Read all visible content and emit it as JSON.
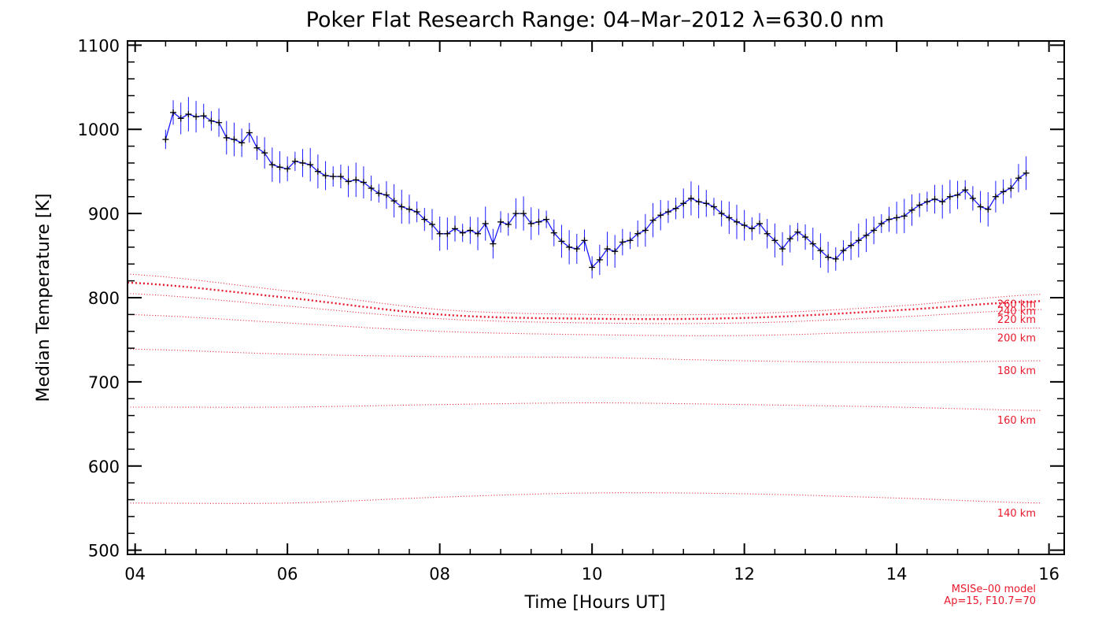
{
  "chart_data": {
    "type": "line",
    "title": "Poker Flat Research Range: 04–Mar–2012 λ=630.0 nm",
    "xlabel": "Time [Hours UT]",
    "ylabel": "Median Temperature [K]",
    "xlim": [
      3.9,
      16.2
    ],
    "ylim": [
      495,
      1105
    ],
    "xticks": [
      4,
      6,
      8,
      10,
      12,
      14,
      16
    ],
    "xtick_labels": [
      "04",
      "06",
      "08",
      "10",
      "12",
      "14",
      "16"
    ],
    "yticks": [
      500,
      600,
      700,
      800,
      900,
      1000,
      1100
    ],
    "ytick_labels": [
      "500",
      "600",
      "700",
      "800",
      "900",
      "1000",
      "1100"
    ],
    "grid": false,
    "measured": {
      "color": "#1a1aff",
      "marker_color": "#000000",
      "error": 17,
      "points": [
        [
          4.4,
          988
        ],
        [
          4.5,
          1020
        ],
        [
          4.6,
          1013
        ],
        [
          4.7,
          1018
        ],
        [
          4.8,
          1015
        ],
        [
          4.9,
          1016
        ],
        [
          5.0,
          1010
        ],
        [
          5.1,
          1008
        ],
        [
          5.2,
          990
        ],
        [
          5.3,
          988
        ],
        [
          5.4,
          984
        ],
        [
          5.5,
          996
        ],
        [
          5.6,
          978
        ],
        [
          5.7,
          972
        ],
        [
          5.8,
          958
        ],
        [
          5.9,
          955
        ],
        [
          6.0,
          953
        ],
        [
          6.1,
          962
        ],
        [
          6.2,
          960
        ],
        [
          6.3,
          958
        ],
        [
          6.4,
          950
        ],
        [
          6.5,
          945
        ],
        [
          6.6,
          944
        ],
        [
          6.7,
          944
        ],
        [
          6.8,
          938
        ],
        [
          6.9,
          940
        ],
        [
          7.0,
          937
        ],
        [
          7.1,
          930
        ],
        [
          7.2,
          924
        ],
        [
          7.3,
          922
        ],
        [
          7.4,
          915
        ],
        [
          7.5,
          908
        ],
        [
          7.6,
          905
        ],
        [
          7.7,
          902
        ],
        [
          7.8,
          893
        ],
        [
          7.9,
          887
        ],
        [
          8.0,
          876
        ],
        [
          8.1,
          876
        ],
        [
          8.2,
          882
        ],
        [
          8.3,
          877
        ],
        [
          8.4,
          880
        ],
        [
          8.5,
          876
        ],
        [
          8.6,
          888
        ],
        [
          8.7,
          864
        ],
        [
          8.8,
          890
        ],
        [
          8.9,
          887
        ],
        [
          9.0,
          900
        ],
        [
          9.1,
          900
        ],
        [
          9.2,
          888
        ],
        [
          9.3,
          890
        ],
        [
          9.4,
          893
        ],
        [
          9.5,
          877
        ],
        [
          9.6,
          867
        ],
        [
          9.7,
          860
        ],
        [
          9.8,
          858
        ],
        [
          9.9,
          868
        ],
        [
          10.0,
          836
        ],
        [
          10.1,
          845
        ],
        [
          10.2,
          858
        ],
        [
          10.3,
          855
        ],
        [
          10.4,
          866
        ],
        [
          10.5,
          868
        ],
        [
          10.6,
          876
        ],
        [
          10.7,
          880
        ],
        [
          10.8,
          892
        ],
        [
          10.9,
          898
        ],
        [
          11.0,
          902
        ],
        [
          11.1,
          906
        ],
        [
          11.2,
          912
        ],
        [
          11.3,
          918
        ],
        [
          11.4,
          914
        ],
        [
          11.5,
          912
        ],
        [
          11.6,
          908
        ],
        [
          11.7,
          900
        ],
        [
          11.8,
          895
        ],
        [
          11.9,
          890
        ],
        [
          12.0,
          886
        ],
        [
          12.1,
          882
        ],
        [
          12.2,
          888
        ],
        [
          12.3,
          876
        ],
        [
          12.4,
          868
        ],
        [
          12.5,
          858
        ],
        [
          12.6,
          870
        ],
        [
          12.7,
          878
        ],
        [
          12.8,
          872
        ],
        [
          12.9,
          864
        ],
        [
          13.0,
          856
        ],
        [
          13.1,
          848
        ],
        [
          13.2,
          846
        ],
        [
          13.3,
          856
        ],
        [
          13.4,
          862
        ],
        [
          13.5,
          868
        ],
        [
          13.6,
          874
        ],
        [
          13.7,
          880
        ],
        [
          13.8,
          888
        ],
        [
          13.9,
          893
        ],
        [
          14.0,
          895
        ],
        [
          14.1,
          897
        ],
        [
          14.2,
          904
        ],
        [
          14.3,
          910
        ],
        [
          14.4,
          914
        ],
        [
          14.5,
          917
        ],
        [
          14.6,
          914
        ],
        [
          14.7,
          920
        ],
        [
          14.8,
          922
        ],
        [
          14.9,
          928
        ],
        [
          15.0,
          918
        ],
        [
          15.1,
          908
        ],
        [
          15.2,
          905
        ],
        [
          15.3,
          920
        ],
        [
          15.4,
          926
        ],
        [
          15.5,
          930
        ],
        [
          15.6,
          942
        ],
        [
          15.7,
          948
        ]
      ]
    },
    "model": {
      "color": "#e8192c",
      "name": "MSISe–00 model",
      "params": "Ap=15, F10.7=70",
      "series": [
        {
          "label": "260 km",
          "x": [
            3.9,
            6,
            8,
            10,
            12,
            14,
            15.9
          ],
          "values": [
            828,
            808,
            786,
            780,
            781,
            790,
            804
          ]
        },
        {
          "label": "240 km",
          "x": [
            3.9,
            6,
            8,
            10,
            12,
            14,
            15.9
          ],
          "values": [
            818,
            800,
            780,
            775,
            776,
            785,
            796
          ]
        },
        {
          "label": "220 km",
          "x": [
            3.9,
            6,
            8,
            10,
            12,
            14,
            15.9
          ],
          "values": [
            805,
            790,
            775,
            770,
            770,
            777,
            786
          ]
        },
        {
          "label": "200 km",
          "x": [
            3.9,
            6,
            8,
            10,
            12,
            14,
            15.9
          ],
          "values": [
            780,
            770,
            760,
            756,
            755,
            760,
            764
          ]
        },
        {
          "label": "180 km",
          "x": [
            3.9,
            6,
            8,
            10,
            12,
            14,
            15.9
          ],
          "values": [
            739,
            733,
            730,
            729,
            725,
            723,
            725
          ]
        },
        {
          "label": "160 km",
          "x": [
            3.9,
            6,
            8,
            10,
            12,
            14,
            15.9
          ],
          "values": [
            670,
            670,
            673,
            675,
            673,
            670,
            666
          ]
        },
        {
          "label": "140 km",
          "x": [
            3.9,
            6,
            8,
            10,
            12,
            14,
            15.9
          ],
          "values": [
            556,
            556,
            563,
            568,
            567,
            562,
            556
          ]
        }
      ]
    }
  }
}
